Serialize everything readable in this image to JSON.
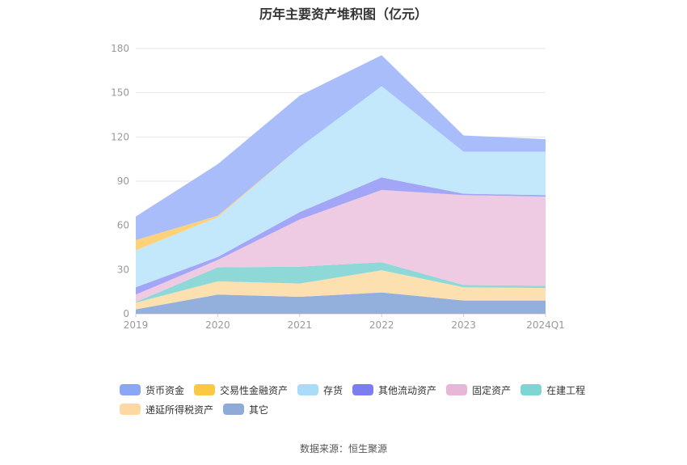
{
  "chart_data": {
    "type": "area",
    "stacked": true,
    "title": "历年主要资产堆积图（亿元）",
    "categories": [
      "2019",
      "2020",
      "2021",
      "2022",
      "2023",
      "2024Q1"
    ],
    "yticks": [
      0,
      30,
      60,
      90,
      120,
      150,
      180
    ],
    "ylim": [
      0,
      180
    ],
    "grid": true,
    "legend_position": "bottom",
    "series": [
      {
        "name": "其它",
        "color": "#93b0dc",
        "values": [
          3,
          13,
          11.5,
          14.5,
          9,
          9
        ]
      },
      {
        "name": "递延所得税资产",
        "color": "#fde0b0",
        "values": [
          4.5,
          9,
          9,
          15,
          9,
          8.5
        ]
      },
      {
        "name": "在建工程",
        "color": "#8ed8d8",
        "values": [
          0.5,
          9.5,
          11.5,
          5.5,
          1.5,
          1.5
        ]
      },
      {
        "name": "固定资产",
        "color": "#eecbe2",
        "values": [
          5,
          5,
          32,
          49,
          61,
          60.5
        ]
      },
      {
        "name": "其他流动资产",
        "color": "#a3a6f6",
        "values": [
          5,
          2,
          5,
          8.5,
          1,
          1
        ]
      },
      {
        "name": "存货",
        "color": "#c3e7fb",
        "values": [
          25,
          27,
          44,
          62,
          28.5,
          29.5
        ]
      },
      {
        "name": "交易性金融资产",
        "color": "#ffd27a",
        "values": [
          7,
          1,
          0,
          0,
          0,
          0
        ]
      },
      {
        "name": "货币资金",
        "color": "#a9bdfa",
        "values": [
          16,
          35,
          35,
          21,
          11,
          8.5
        ]
      }
    ],
    "legend_order": [
      "货币资金",
      "交易性金融资产",
      "存货",
      "其他流动资产",
      "固定资产",
      "在建工程",
      "递延所得税资产",
      "其它"
    ],
    "legend_colors": {
      "货币资金": "#8aa7f6",
      "交易性金融资产": "#fbc844",
      "存货": "#a9dcf8",
      "其他流动资产": "#7b7ef0",
      "固定资产": "#e8b6d8",
      "在建工程": "#7fd4d4",
      "递延所得税资产": "#fcd9a0",
      "其它": "#8eaad8"
    }
  },
  "footer": {
    "source": "数据来源：恒生聚源"
  }
}
